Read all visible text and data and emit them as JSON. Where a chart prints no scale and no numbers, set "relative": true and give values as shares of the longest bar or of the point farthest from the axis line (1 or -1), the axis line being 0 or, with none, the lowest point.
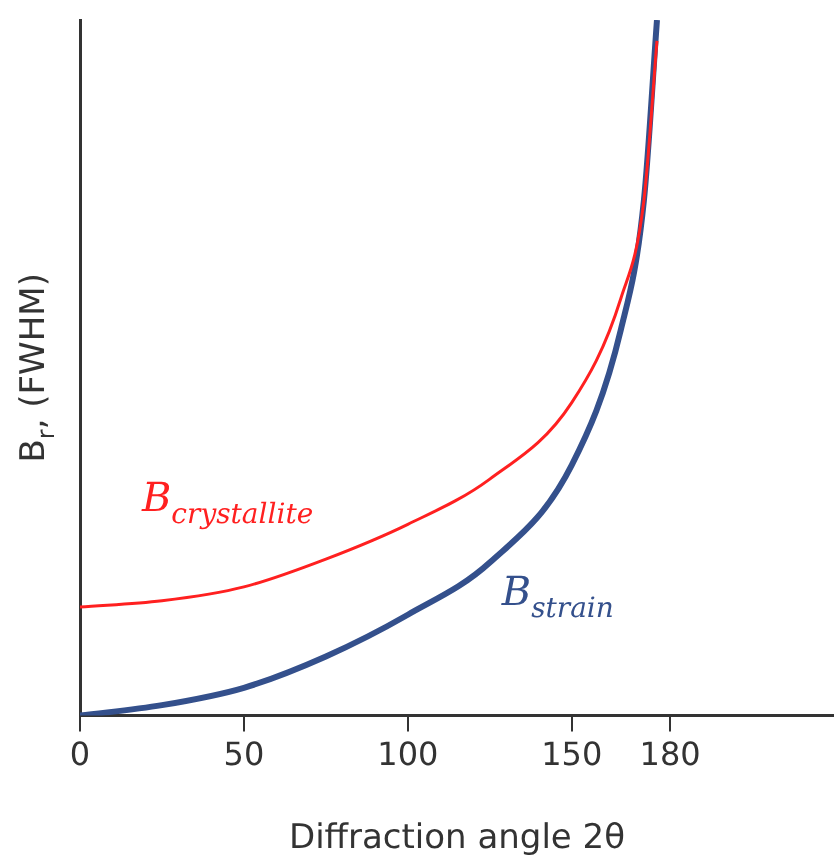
{
  "chart_data": {
    "type": "line",
    "xlabel": "Diffraction angle 2θ",
    "ylabel": "B$_{r}$, (FWHM)",
    "relative": true,
    "xlim": [
      0,
      230
    ],
    "xticks": [
      0,
      50,
      100,
      150,
      180
    ],
    "tick_labels": "x",
    "grid": false,
    "legend": false,
    "marker": "none",
    "line_style": "solid",
    "series": [
      {
        "name": "B$_{crystallite}$",
        "color": "#ff2020",
        "x": [
          0,
          25,
          50,
          75,
          100,
          125,
          150,
          165,
          172,
          176
        ],
        "values": [
          0.156,
          0.165,
          0.185,
          0.225,
          0.275,
          0.34,
          0.45,
          0.6,
          0.74,
          0.97
        ]
      },
      {
        "name": "B$_{strain}$",
        "color": "#34508c",
        "x": [
          0,
          25,
          50,
          75,
          100,
          125,
          150,
          165,
          172,
          176
        ],
        "values": [
          0,
          0.015,
          0.04,
          0.085,
          0.145,
          0.22,
          0.36,
          0.555,
          0.74,
          1
        ]
      }
    ]
  }
}
